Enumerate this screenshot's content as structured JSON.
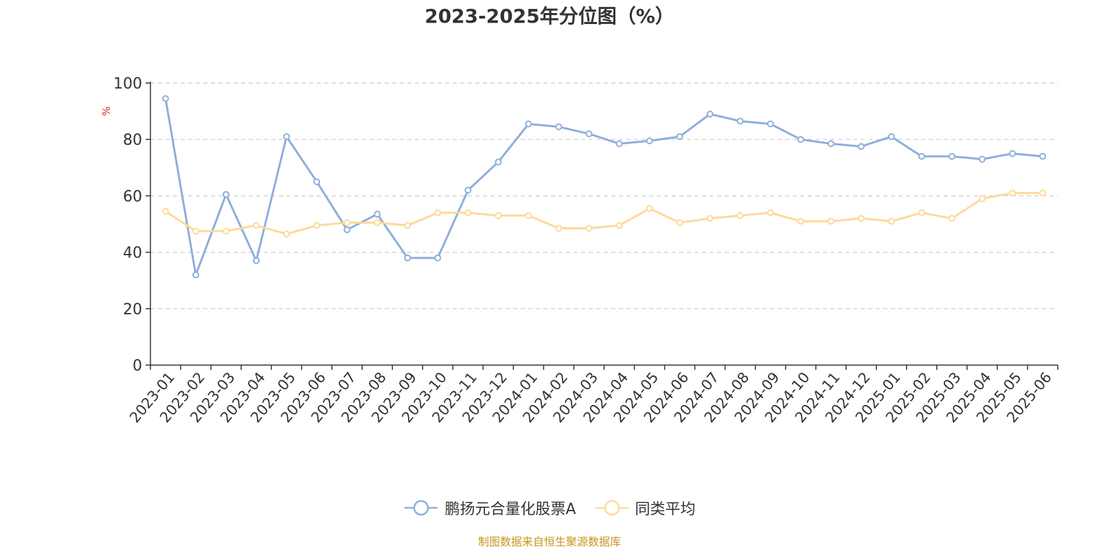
{
  "chart_data": {
    "type": "line",
    "title": "2023-2025年分位图（%）",
    "ylabel": "%",
    "ylim": [
      0,
      100
    ],
    "yticks": [
      0,
      20,
      40,
      60,
      80,
      100
    ],
    "grid": true,
    "legend_position": "bottom-center",
    "categories": [
      "2023-01",
      "2023-02",
      "2023-03",
      "2023-04",
      "2023-05",
      "2023-06",
      "2023-07",
      "2023-08",
      "2023-09",
      "2023-10",
      "2023-11",
      "2023-12",
      "2024-01",
      "2024-02",
      "2024-03",
      "2024-04",
      "2024-05",
      "2024-06",
      "2024-07",
      "2024-08",
      "2024-09",
      "2024-10",
      "2024-11",
      "2024-12",
      "2025-01",
      "2025-02",
      "2025-03",
      "2025-04",
      "2025-05",
      "2025-06"
    ],
    "series": [
      {
        "name": "鹏扬元合量化股票A",
        "color": "#8eaedb",
        "values": [
          94.5,
          32,
          60.5,
          37,
          81,
          65,
          48,
          53.5,
          38,
          38,
          62,
          72,
          85.5,
          84.5,
          82,
          78.5,
          79.5,
          81,
          89,
          86.5,
          85.5,
          80,
          78.5,
          77.5,
          81,
          74,
          74,
          73,
          75,
          74
        ]
      },
      {
        "name": "同类平均",
        "color": "#fdd99a",
        "values": [
          54.5,
          47.5,
          47.5,
          49.5,
          46.5,
          49.5,
          50.5,
          50.5,
          49.5,
          54,
          54,
          53,
          53,
          48.5,
          48.5,
          49.5,
          55.5,
          50.5,
          52,
          53,
          54,
          51,
          51,
          52,
          51,
          54,
          52,
          59,
          61,
          61
        ]
      }
    ]
  },
  "source_text": "制图数据来自恒生聚源数据库"
}
